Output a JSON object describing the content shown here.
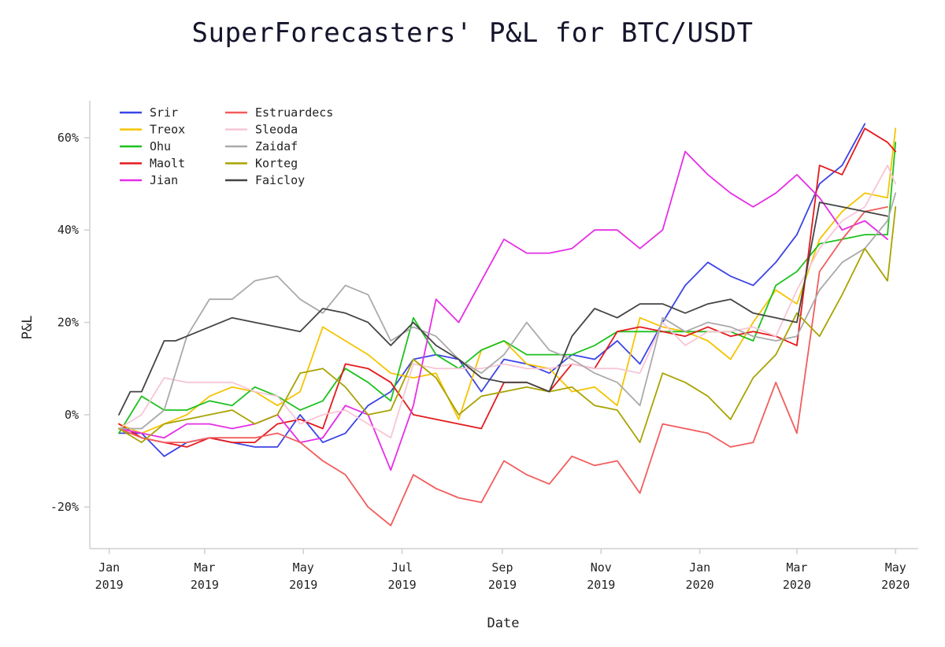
{
  "chart_data": {
    "type": "line",
    "title": "SuperForecasters' P&L for BTC/USDT",
    "xlabel": "Date",
    "ylabel": "P&L",
    "ylim": [
      -29,
      68
    ],
    "xlim": [
      "2018-12-20",
      "2020-05-15"
    ],
    "y_ticks": [
      {
        "value": -20,
        "label": "-20%"
      },
      {
        "value": 0,
        "label": "0%"
      },
      {
        "value": 20,
        "label": "20%"
      },
      {
        "value": 40,
        "label": "40%"
      },
      {
        "value": 60,
        "label": "60%"
      }
    ],
    "x_ticks": [
      {
        "date": "2019-01-01",
        "line1": "Jan",
        "line2": "2019"
      },
      {
        "date": "2019-03-01",
        "line1": "Mar",
        "line2": "2019"
      },
      {
        "date": "2019-05-01",
        "line1": "May",
        "line2": "2019"
      },
      {
        "date": "2019-07-01",
        "line1": "Jul",
        "line2": "2019"
      },
      {
        "date": "2019-09-01",
        "line1": "Sep",
        "line2": "2019"
      },
      {
        "date": "2019-11-01",
        "line1": "Nov",
        "line2": "2019"
      },
      {
        "date": "2020-01-01",
        "line1": "Jan",
        "line2": "2020"
      },
      {
        "date": "2020-03-01",
        "line1": "Mar",
        "line2": "2020"
      },
      {
        "date": "2020-05-01",
        "line1": "May",
        "line2": "2020"
      }
    ],
    "grid": false,
    "legend_position": "top-left",
    "series": [
      {
        "name": "Srir",
        "color": "#3b44e6",
        "x": [
          "2019-01-07",
          "2019-01-21",
          "2019-02-04",
          "2019-02-18",
          "2019-03-04",
          "2019-03-18",
          "2019-04-01",
          "2019-04-15",
          "2019-04-29",
          "2019-05-13",
          "2019-05-27",
          "2019-06-10",
          "2019-06-24",
          "2019-07-08",
          "2019-07-22",
          "2019-08-05",
          "2019-08-19",
          "2019-09-02",
          "2019-09-16",
          "2019-09-30",
          "2019-10-14",
          "2019-10-28",
          "2019-11-11",
          "2019-11-25",
          "2019-12-09",
          "2019-12-23",
          "2020-01-06",
          "2020-01-20",
          "2020-02-03",
          "2020-02-17",
          "2020-03-01",
          "2020-03-15",
          "2020-03-29",
          "2020-04-12"
        ],
        "y": [
          -4,
          -4,
          -9,
          -6,
          -5,
          -6,
          -7,
          -7,
          0,
          -6,
          -4,
          2,
          5,
          12,
          13,
          12,
          5,
          12,
          11,
          9,
          13,
          12,
          16,
          11,
          20,
          28,
          33,
          30,
          28,
          33,
          39,
          50,
          54,
          63
        ]
      },
      {
        "name": "Treox",
        "color": "#f5c400",
        "x": [
          "2019-01-07",
          "2019-01-21",
          "2019-02-04",
          "2019-02-18",
          "2019-03-04",
          "2019-03-18",
          "2019-04-01",
          "2019-04-15",
          "2019-04-29",
          "2019-05-13",
          "2019-05-27",
          "2019-06-10",
          "2019-06-24",
          "2019-07-08",
          "2019-07-22",
          "2019-08-05",
          "2019-08-19",
          "2019-09-02",
          "2019-09-16",
          "2019-09-30",
          "2019-10-14",
          "2019-10-28",
          "2019-11-11",
          "2019-11-25",
          "2019-12-09",
          "2019-12-23",
          "2020-01-06",
          "2020-01-20",
          "2020-02-03",
          "2020-02-17",
          "2020-03-01",
          "2020-03-15",
          "2020-03-29",
          "2020-04-12",
          "2020-04-26",
          "2020-05-01"
        ],
        "y": [
          -2,
          -4,
          -2,
          0,
          4,
          6,
          5,
          2,
          5,
          19,
          16,
          13,
          9,
          8,
          9,
          -1,
          14,
          16,
          11,
          10,
          5,
          6,
          2,
          21,
          19,
          18,
          16,
          12,
          20,
          27,
          24,
          38,
          44,
          48,
          47,
          62
        ]
      },
      {
        "name": "Ohu",
        "color": "#1ec11e",
        "x": [
          "2019-01-07",
          "2019-01-21",
          "2019-02-04",
          "2019-02-18",
          "2019-03-04",
          "2019-03-18",
          "2019-04-01",
          "2019-04-15",
          "2019-04-29",
          "2019-05-13",
          "2019-05-27",
          "2019-06-10",
          "2019-06-24",
          "2019-07-08",
          "2019-07-22",
          "2019-08-05",
          "2019-08-19",
          "2019-09-02",
          "2019-09-16",
          "2019-09-30",
          "2019-10-14",
          "2019-10-28",
          "2019-11-11",
          "2019-11-25",
          "2019-12-09",
          "2019-12-23",
          "2020-01-06",
          "2020-01-20",
          "2020-02-03",
          "2020-02-17",
          "2020-03-01",
          "2020-03-15",
          "2020-03-29",
          "2020-04-12",
          "2020-04-26",
          "2020-05-01"
        ],
        "y": [
          -4,
          4,
          1,
          1,
          3,
          2,
          6,
          4,
          1,
          3,
          10,
          7,
          3,
          21,
          13,
          10,
          14,
          16,
          13,
          13,
          13,
          15,
          18,
          18,
          18,
          18,
          18,
          18,
          16,
          28,
          31,
          37,
          38,
          39,
          39,
          59
        ]
      },
      {
        "name": "Maolt",
        "color": "#e41a1c",
        "x": [
          "2019-01-07",
          "2019-01-21",
          "2019-02-04",
          "2019-02-18",
          "2019-03-04",
          "2019-03-18",
          "2019-04-01",
          "2019-04-15",
          "2019-04-29",
          "2019-05-13",
          "2019-05-27",
          "2019-06-10",
          "2019-06-24",
          "2019-07-08",
          "2019-07-22",
          "2019-08-05",
          "2019-08-19",
          "2019-09-02",
          "2019-09-16",
          "2019-09-30",
          "2019-10-14",
          "2019-10-28",
          "2019-11-11",
          "2019-11-25",
          "2019-12-09",
          "2019-12-23",
          "2020-01-06",
          "2020-01-20",
          "2020-02-03",
          "2020-02-17",
          "2020-03-01",
          "2020-03-15",
          "2020-03-29",
          "2020-04-12",
          "2020-04-26",
          "2020-05-01"
        ],
        "y": [
          -2,
          -5,
          -6,
          -7,
          -5,
          -6,
          -6,
          -2,
          -1,
          -3,
          11,
          10,
          7,
          0,
          -1,
          -2,
          -3,
          7,
          7,
          5,
          11,
          10,
          18,
          19,
          18,
          17,
          19,
          17,
          18,
          17,
          15,
          54,
          52,
          62,
          59,
          57
        ]
      },
      {
        "name": "Jian",
        "color": "#e62ee6",
        "x": [
          "2019-01-07",
          "2019-01-21",
          "2019-02-04",
          "2019-02-18",
          "2019-03-04",
          "2019-03-18",
          "2019-04-01",
          "2019-04-15",
          "2019-04-29",
          "2019-05-13",
          "2019-05-27",
          "2019-06-10",
          "2019-06-24",
          "2019-07-08",
          "2019-07-22",
          "2019-08-05",
          "2019-08-19",
          "2019-09-02",
          "2019-09-16",
          "2019-09-30",
          "2019-10-14",
          "2019-10-28",
          "2019-11-11",
          "2019-11-25",
          "2019-12-09",
          "2019-12-23",
          "2020-01-06",
          "2020-01-20",
          "2020-02-03",
          "2020-02-17",
          "2020-03-01",
          "2020-03-15",
          "2020-03-29",
          "2020-04-12",
          "2020-04-26"
        ],
        "y": [
          -3,
          -4,
          -5,
          -2,
          -2,
          -3,
          -2,
          0,
          -6,
          -5,
          2,
          0,
          -12,
          2,
          25,
          20,
          29,
          38,
          35,
          35,
          36,
          40,
          40,
          36,
          40,
          57,
          52,
          48,
          45,
          48,
          52,
          47,
          40,
          42,
          38
        ]
      },
      {
        "name": "Estruardecs",
        "color": "#f25c5c",
        "x": [
          "2019-01-07",
          "2019-01-21",
          "2019-02-04",
          "2019-02-18",
          "2019-03-04",
          "2019-03-18",
          "2019-04-01",
          "2019-04-15",
          "2019-04-29",
          "2019-05-13",
          "2019-05-27",
          "2019-06-10",
          "2019-06-24",
          "2019-07-08",
          "2019-07-22",
          "2019-08-05",
          "2019-08-19",
          "2019-09-02",
          "2019-09-16",
          "2019-09-30",
          "2019-10-14",
          "2019-10-28",
          "2019-11-11",
          "2019-11-25",
          "2019-12-09",
          "2019-12-23",
          "2020-01-06",
          "2020-01-20",
          "2020-02-03",
          "2020-02-17",
          "2020-03-01",
          "2020-03-15",
          "2020-03-29",
          "2020-04-12",
          "2020-04-26"
        ],
        "y": [
          -3,
          -5,
          -6,
          -6,
          -5,
          -5,
          -5,
          -4,
          -6,
          -10,
          -13,
          -20,
          -24,
          -13,
          -16,
          -18,
          -19,
          -10,
          -13,
          -15,
          -9,
          -11,
          -10,
          -17,
          -2,
          -3,
          -4,
          -7,
          -6,
          7,
          -4,
          31,
          38,
          44,
          45
        ]
      },
      {
        "name": "Sleoda",
        "color": "#f7c6d6",
        "x": [
          "2019-01-07",
          "2019-01-21",
          "2019-02-04",
          "2019-02-18",
          "2019-03-04",
          "2019-03-18",
          "2019-04-01",
          "2019-04-15",
          "2019-04-29",
          "2019-05-13",
          "2019-05-27",
          "2019-06-10",
          "2019-06-24",
          "2019-07-08",
          "2019-07-22",
          "2019-08-05",
          "2019-08-19",
          "2019-09-02",
          "2019-09-16",
          "2019-09-30",
          "2019-10-14",
          "2019-10-28",
          "2019-11-11",
          "2019-11-25",
          "2019-12-09",
          "2019-12-23",
          "2020-01-06",
          "2020-01-20",
          "2020-02-03",
          "2020-02-17",
          "2020-03-01",
          "2020-03-15",
          "2020-03-29",
          "2020-04-12",
          "2020-04-26",
          "2020-05-01"
        ],
        "y": [
          -3,
          0,
          8,
          7,
          7,
          7,
          5,
          4,
          -2,
          0,
          1,
          -2,
          -5,
          11,
          10,
          10,
          10,
          11,
          10,
          10,
          11,
          10,
          10,
          9,
          20,
          15,
          18,
          18,
          19,
          17,
          27,
          36,
          42,
          45,
          54,
          50
        ]
      },
      {
        "name": "Zaidaf",
        "color": "#aaaaaa",
        "x": [
          "2019-01-07",
          "2019-01-21",
          "2019-02-04",
          "2019-02-18",
          "2019-03-04",
          "2019-03-18",
          "2019-04-01",
          "2019-04-15",
          "2019-04-29",
          "2019-05-13",
          "2019-05-27",
          "2019-06-10",
          "2019-06-24",
          "2019-07-08",
          "2019-07-22",
          "2019-08-05",
          "2019-08-19",
          "2019-09-02",
          "2019-09-16",
          "2019-09-30",
          "2019-10-14",
          "2019-10-28",
          "2019-11-11",
          "2019-11-25",
          "2019-12-09",
          "2019-12-23",
          "2020-01-06",
          "2020-01-20",
          "2020-02-03",
          "2020-02-17",
          "2020-03-01",
          "2020-03-15",
          "2020-03-29",
          "2020-04-12",
          "2020-04-26",
          "2020-05-01"
        ],
        "y": [
          -3,
          -3,
          1,
          17,
          25,
          25,
          29,
          30,
          25,
          22,
          28,
          26,
          16,
          19,
          17,
          12,
          9,
          13,
          20,
          14,
          12,
          9,
          7,
          2,
          21,
          18,
          20,
          19,
          17,
          16,
          17,
          27,
          33,
          36,
          42,
          48
        ]
      },
      {
        "name": "Korteg",
        "color": "#a8a300",
        "x": [
          "2019-01-07",
          "2019-01-21",
          "2019-02-04",
          "2019-02-18",
          "2019-03-04",
          "2019-03-18",
          "2019-04-01",
          "2019-04-15",
          "2019-04-29",
          "2019-05-13",
          "2019-05-27",
          "2019-06-10",
          "2019-06-24",
          "2019-07-08",
          "2019-07-22",
          "2019-08-05",
          "2019-08-19",
          "2019-09-02",
          "2019-09-16",
          "2019-09-30",
          "2019-10-14",
          "2019-10-28",
          "2019-11-11",
          "2019-11-25",
          "2019-12-09",
          "2019-12-23",
          "2020-01-06",
          "2020-01-20",
          "2020-02-03",
          "2020-02-17",
          "2020-03-01",
          "2020-03-15",
          "2020-03-29",
          "2020-04-12",
          "2020-04-26",
          "2020-05-01"
        ],
        "y": [
          -3,
          -6,
          -2,
          -1,
          0,
          1,
          -2,
          0,
          9,
          10,
          6,
          0,
          1,
          12,
          8,
          0,
          4,
          5,
          6,
          5,
          6,
          2,
          1,
          -6,
          9,
          7,
          4,
          -1,
          8,
          13,
          22,
          17,
          26,
          36,
          29,
          45
        ]
      },
      {
        "name": "Faicloy",
        "color": "#444444",
        "x": [
          "2019-01-07",
          "2019-01-14",
          "2019-01-21",
          "2019-02-04",
          "2019-02-11",
          "2019-02-18",
          "2019-03-04",
          "2019-03-18",
          "2019-04-01",
          "2019-04-15",
          "2019-04-29",
          "2019-05-13",
          "2019-05-27",
          "2019-06-10",
          "2019-06-24",
          "2019-07-08",
          "2019-07-22",
          "2019-08-05",
          "2019-08-19",
          "2019-09-02",
          "2019-09-16",
          "2019-09-30",
          "2019-10-14",
          "2019-10-28",
          "2019-11-11",
          "2019-11-25",
          "2019-12-09",
          "2019-12-23",
          "2020-01-06",
          "2020-01-20",
          "2020-02-03",
          "2020-02-17",
          "2020-03-01",
          "2020-03-15",
          "2020-03-29",
          "2020-04-12",
          "2020-04-26"
        ],
        "y": [
          0,
          5,
          5,
          16,
          16,
          17,
          19,
          21,
          20,
          19,
          18,
          23,
          22,
          20,
          15,
          20,
          15,
          12,
          8,
          7,
          7,
          5,
          17,
          23,
          21,
          24,
          24,
          22,
          24,
          25,
          22,
          21,
          20,
          46,
          45,
          44,
          43
        ]
      }
    ]
  }
}
